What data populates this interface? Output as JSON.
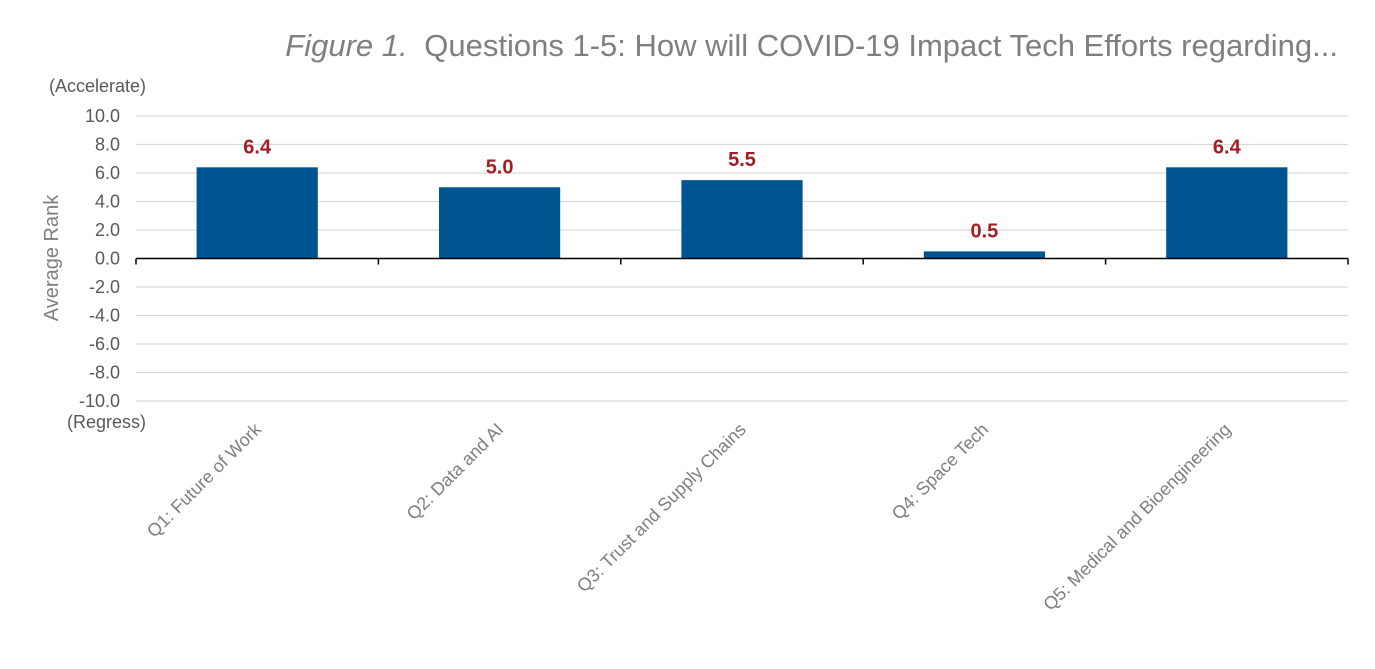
{
  "chart_data": {
    "type": "bar",
    "title_prefix": "Figure 1.",
    "title": "Questions 1-5: How will COVID-19 Impact Tech Efforts regarding...",
    "ylabel": "Average Rank",
    "y_top_note": "(Accelerate)",
    "y_bottom_note": "(Regress)",
    "ylim": [
      -10,
      10
    ],
    "y_ticks": [
      "10.0",
      "8.0",
      "6.0",
      "4.0",
      "2.0",
      "0.0",
      "-2.0",
      "-4.0",
      "-6.0",
      "-8.0",
      "-10.0"
    ],
    "categories": [
      "Q1: Future of Work",
      "Q2: Data and AI",
      "Q3: Trust and Supply Chains",
      "Q4: Space Tech",
      "Q5: Medical and Bioengineering"
    ],
    "values": [
      6.4,
      5.0,
      5.5,
      0.5,
      6.4
    ],
    "data_labels": [
      "6.4",
      "5.0",
      "5.5",
      "0.5",
      "6.4"
    ],
    "grid": true,
    "legend": "none",
    "colors": {
      "bar": "#00548f",
      "data_label": "#a31e22"
    }
  }
}
